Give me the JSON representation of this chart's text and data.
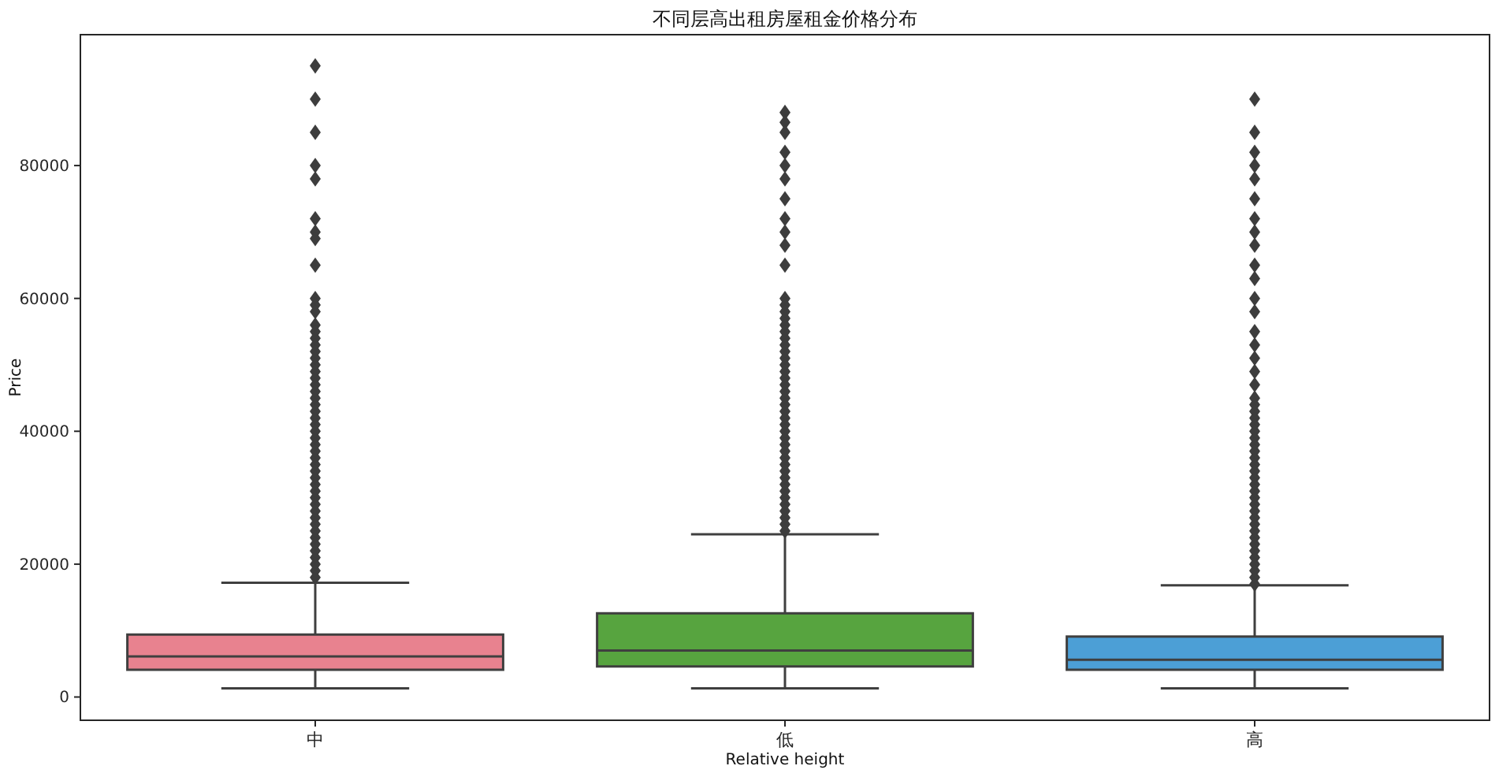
{
  "chart_data": {
    "type": "box",
    "title": "不同层高出租房屋租金价格分布",
    "xlabel": "Relative height",
    "ylabel": "Price",
    "categories": [
      "中",
      "低",
      "高"
    ],
    "colors": [
      "#e8828f",
      "#57a43f",
      "#4c9fd6"
    ],
    "ylim": [
      -3500,
      99700
    ],
    "yticks": [
      0,
      20000,
      40000,
      60000,
      80000
    ],
    "marker": "diamond",
    "grid": false,
    "boxes": [
      {
        "low": 1300,
        "q1": 4100,
        "median": 6100,
        "q3": 9400,
        "high": 17200,
        "outliers": [
          95000,
          90000,
          85000,
          80000,
          78000,
          72000,
          70000,
          69000,
          65000,
          60000,
          59000,
          58000,
          56000,
          55000,
          54000,
          53000,
          52000,
          51000,
          50000,
          49000,
          48000,
          47000,
          46000,
          45000,
          44000,
          43000,
          42000,
          41000,
          40000,
          39000,
          38000,
          37000,
          36000,
          35000,
          34000,
          33000,
          32000,
          31000,
          30000,
          29000,
          28000,
          27000,
          26000,
          25000,
          24000,
          23000,
          22000,
          21000,
          20000,
          19000,
          18000
        ]
      },
      {
        "low": 1300,
        "q1": 4600,
        "median": 7000,
        "q3": 12600,
        "high": 24500,
        "outliers": [
          88000,
          86500,
          85000,
          82000,
          80000,
          78000,
          75000,
          72000,
          70000,
          68000,
          65000,
          60000,
          59000,
          58000,
          57000,
          56000,
          55000,
          54000,
          53000,
          52000,
          51000,
          50000,
          49000,
          48000,
          47000,
          46000,
          45000,
          44000,
          43000,
          42000,
          41000,
          40000,
          39000,
          38000,
          37000,
          36000,
          35000,
          34000,
          33000,
          32000,
          31000,
          30000,
          29000,
          28000,
          27000,
          26000,
          25000
        ]
      },
      {
        "low": 1300,
        "q1": 4100,
        "median": 5600,
        "q3": 9100,
        "high": 16800,
        "outliers": [
          90000,
          85000,
          82000,
          80000,
          78000,
          75000,
          72000,
          70000,
          68000,
          65000,
          63000,
          60000,
          58000,
          55000,
          53000,
          51000,
          49000,
          47000,
          45000,
          44000,
          43000,
          42000,
          41000,
          40000,
          39000,
          38000,
          37000,
          36000,
          35000,
          34000,
          33000,
          32000,
          31000,
          30000,
          29000,
          28000,
          27000,
          26000,
          25000,
          24000,
          23000,
          22000,
          21000,
          20000,
          19000,
          18000,
          17000
        ]
      }
    ]
  }
}
